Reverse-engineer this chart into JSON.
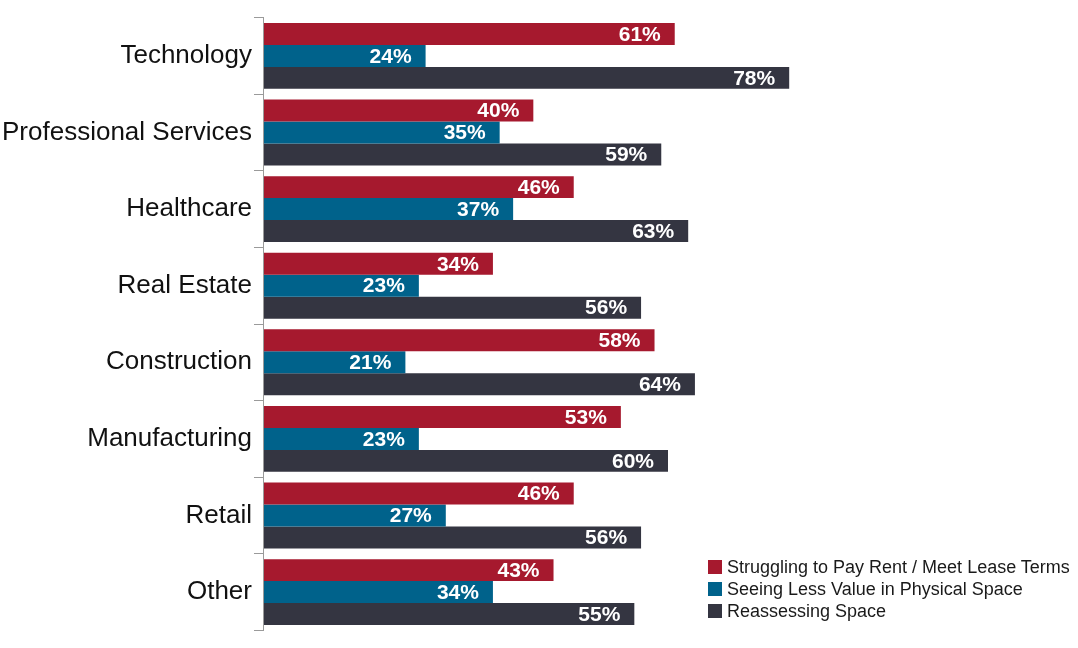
{
  "chart_data": {
    "type": "bar",
    "orientation": "horizontal",
    "legend": "bottom right",
    "categories": [
      "Technology",
      "Professional Services",
      "Healthcare",
      "Real Estate",
      "Construction",
      "Manufacturing",
      "Retail",
      "Other"
    ],
    "series": [
      {
        "name": "Struggling to Pay Rent / Meet Lease Terms",
        "color": "#a6192e",
        "values": [
          61,
          40,
          46,
          34,
          58,
          53,
          46,
          43
        ],
        "value_labels": [
          "61%",
          "40%",
          "46%",
          "34%",
          "58%",
          "53%",
          "46%",
          "43%"
        ]
      },
      {
        "name": "Seeing Less Value in Physical Space",
        "color": "#00628b",
        "values": [
          24,
          35,
          37,
          23,
          21,
          23,
          27,
          34
        ],
        "value_labels": [
          "24%",
          "35%",
          "37%",
          "23%",
          "21%",
          "23%",
          "27%",
          "34%"
        ]
      },
      {
        "name": "Reassessing Space",
        "color": "#343541",
        "values": [
          78,
          59,
          63,
          56,
          64,
          60,
          56,
          55
        ],
        "value_labels": [
          "78%",
          "59%",
          "63%",
          "56%",
          "64%",
          "60%",
          "56%",
          "55%"
        ]
      }
    ]
  }
}
